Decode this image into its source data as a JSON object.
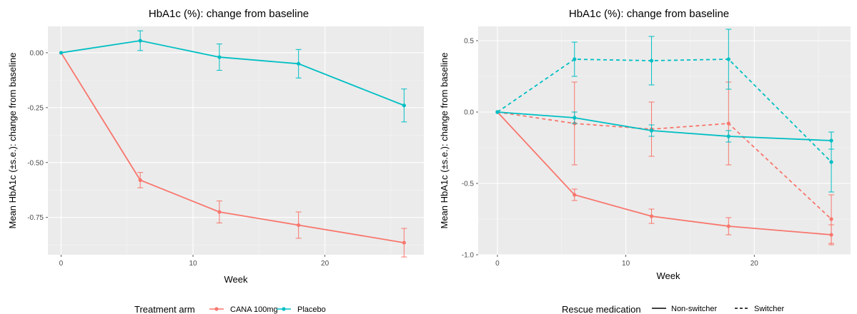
{
  "colors": {
    "red": "#F8766D",
    "teal": "#00BFC4",
    "panel": "#EBEBEB",
    "grid_major": "#FFFFFF",
    "grid_minor": "#F5F5F5"
  },
  "chart_data": [
    {
      "type": "line",
      "title": "HbA1c (%): change from baseline",
      "xlabel": "Week",
      "ylabel": "Mean HbA1c (±s.e.): change from baseline",
      "xlim": [
        -1,
        27.5
      ],
      "ylim": [
        -0.92,
        0.12
      ],
      "xticks": [
        0,
        10,
        20
      ],
      "xtick_labels": [
        "0",
        "10",
        "20"
      ],
      "yticks": [
        0.0,
        -0.25,
        -0.5,
        -0.75
      ],
      "ytick_labels": [
        "0.00",
        "-0.25",
        "-0.50",
        "-0.75"
      ],
      "grid": true,
      "legend": {
        "title": "Treatment arm",
        "position": "bottom",
        "entries": [
          {
            "label": "CANA 100mg",
            "color": "#F8766D"
          },
          {
            "label": "Placebo",
            "color": "#00BFC4"
          }
        ]
      },
      "series": [
        {
          "name": "CANA 100mg",
          "color": "#F8766D",
          "dash": "solid",
          "x": [
            0,
            6,
            12,
            18,
            26
          ],
          "y": [
            0.0,
            -0.58,
            -0.725,
            -0.785,
            -0.865
          ],
          "se": [
            0,
            0.035,
            0.05,
            0.06,
            0.065
          ]
        },
        {
          "name": "Placebo",
          "color": "#00BFC4",
          "dash": "solid",
          "x": [
            0,
            6,
            12,
            18,
            26
          ],
          "y": [
            0.0,
            0.055,
            -0.02,
            -0.05,
            -0.24
          ],
          "se": [
            0,
            0.045,
            0.06,
            0.065,
            0.075
          ]
        }
      ]
    },
    {
      "type": "line",
      "title": "HbA1c (%): change from baseline",
      "xlabel": "Week",
      "ylabel": "Mean HbA1c (±s.e.): change from baseline",
      "xlim": [
        -1.5,
        27.5
      ],
      "ylim": [
        -1.0,
        0.6
      ],
      "xticks": [
        0,
        10,
        20
      ],
      "xtick_labels": [
        "0",
        "10",
        "20"
      ],
      "yticks": [
        0.5,
        0.0,
        -0.5,
        -1.0
      ],
      "ytick_labels": [
        "0.5",
        "0.0",
        "-0.5",
        "-1.0"
      ],
      "grid": true,
      "legend": {
        "title": "Rescue medication",
        "position": "bottom",
        "entries": [
          {
            "label": "Non-switcher",
            "dash": "solid"
          },
          {
            "label": "Switcher",
            "dash": "dashed"
          }
        ]
      },
      "series": [
        {
          "name": "CANA 100mg Non-switcher",
          "color": "#F8766D",
          "dash": "solid",
          "x": [
            0,
            6,
            12,
            18,
            26
          ],
          "y": [
            0.0,
            -0.58,
            -0.73,
            -0.8,
            -0.86
          ],
          "se": [
            0,
            0.04,
            0.05,
            0.06,
            0.07
          ]
        },
        {
          "name": "CANA 100mg Switcher",
          "color": "#F8766D",
          "dash": "dashed",
          "x": [
            0,
            6,
            12,
            18,
            26
          ],
          "y": [
            0.0,
            -0.08,
            -0.12,
            -0.08,
            -0.75
          ],
          "se": [
            0,
            0.29,
            0.19,
            0.29,
            0.17
          ]
        },
        {
          "name": "Placebo Non-switcher",
          "color": "#00BFC4",
          "dash": "solid",
          "x": [
            0,
            6,
            12,
            18,
            26
          ],
          "y": [
            0.0,
            -0.04,
            -0.13,
            -0.17,
            -0.2
          ],
          "se": [
            0,
            0.04,
            0.04,
            0.04,
            0.06
          ]
        },
        {
          "name": "Placebo Switcher",
          "color": "#00BFC4",
          "dash": "dashed",
          "x": [
            0,
            6,
            12,
            18,
            26
          ],
          "y": [
            0.0,
            0.37,
            0.36,
            0.37,
            -0.35
          ],
          "se": [
            0,
            0.12,
            0.17,
            0.21,
            0.21
          ]
        }
      ]
    }
  ]
}
